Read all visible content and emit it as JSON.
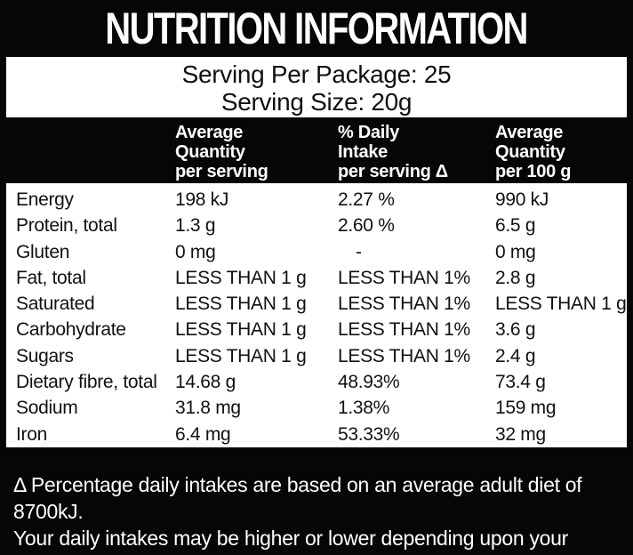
{
  "colors": {
    "label_black": "#060606",
    "panel_white": "#ffffff",
    "text_dark": "#111111",
    "text_light": "#ffffff"
  },
  "header": {
    "title": "NUTRITION INFORMATION"
  },
  "serving": {
    "per_package": "Serving Per Package: 25",
    "size": "Serving Size: 20g"
  },
  "table": {
    "columns": [
      {
        "line1": "Average",
        "line2": "Quantity",
        "line3": "per serving"
      },
      {
        "line1": "% Daily",
        "line2": "Intake",
        "line3": "per serving Δ"
      },
      {
        "line1": "Average",
        "line2": "Quantity",
        "line3": "per 100 g"
      }
    ],
    "rows": [
      {
        "nutrient": "Energy",
        "per_serving": "198 kJ",
        "daily_intake_pct": "2.27 %",
        "per_100g": "990 kJ"
      },
      {
        "nutrient": "Protein, total",
        "per_serving": "1.3 g",
        "daily_intake_pct": "2.60 %",
        "per_100g": "6.5 g"
      },
      {
        "nutrient": "Gluten",
        "per_serving": "0 mg",
        "daily_intake_pct": "-",
        "per_100g": "0 mg"
      },
      {
        "nutrient": "Fat, total",
        "per_serving": "LESS THAN 1 g",
        "daily_intake_pct": "LESS THAN 1%",
        "per_100g": "2.8 g"
      },
      {
        "nutrient": "Saturated",
        "per_serving": "LESS THAN 1 g",
        "daily_intake_pct": "LESS THAN 1%",
        "per_100g": "LESS THAN 1 g"
      },
      {
        "nutrient": "Carbohydrate",
        "per_serving": "LESS THAN 1 g",
        "daily_intake_pct": "LESS THAN 1%",
        "per_100g": "3.6 g"
      },
      {
        "nutrient": "Sugars",
        "per_serving": "LESS THAN 1 g",
        "daily_intake_pct": "LESS THAN 1%",
        "per_100g": "2.4 g"
      },
      {
        "nutrient": "Dietary fibre, total",
        "per_serving": "14.68 g",
        "daily_intake_pct": "48.93%",
        "per_100g": "73.4 g"
      },
      {
        "nutrient": "Sodium",
        "per_serving": "31.8 mg",
        "daily_intake_pct": "1.38%",
        "per_100g": "159 mg"
      },
      {
        "nutrient": "Iron",
        "per_serving": "6.4 mg",
        "daily_intake_pct": "53.33%",
        "per_100g": "32 mg"
      }
    ]
  },
  "footnote": {
    "line1": "Δ Percentage daily intakes are based on an average adult diet of 8700kJ.",
    "line2": "Your daily intakes may be higher or lower depending upon your energy needs."
  }
}
